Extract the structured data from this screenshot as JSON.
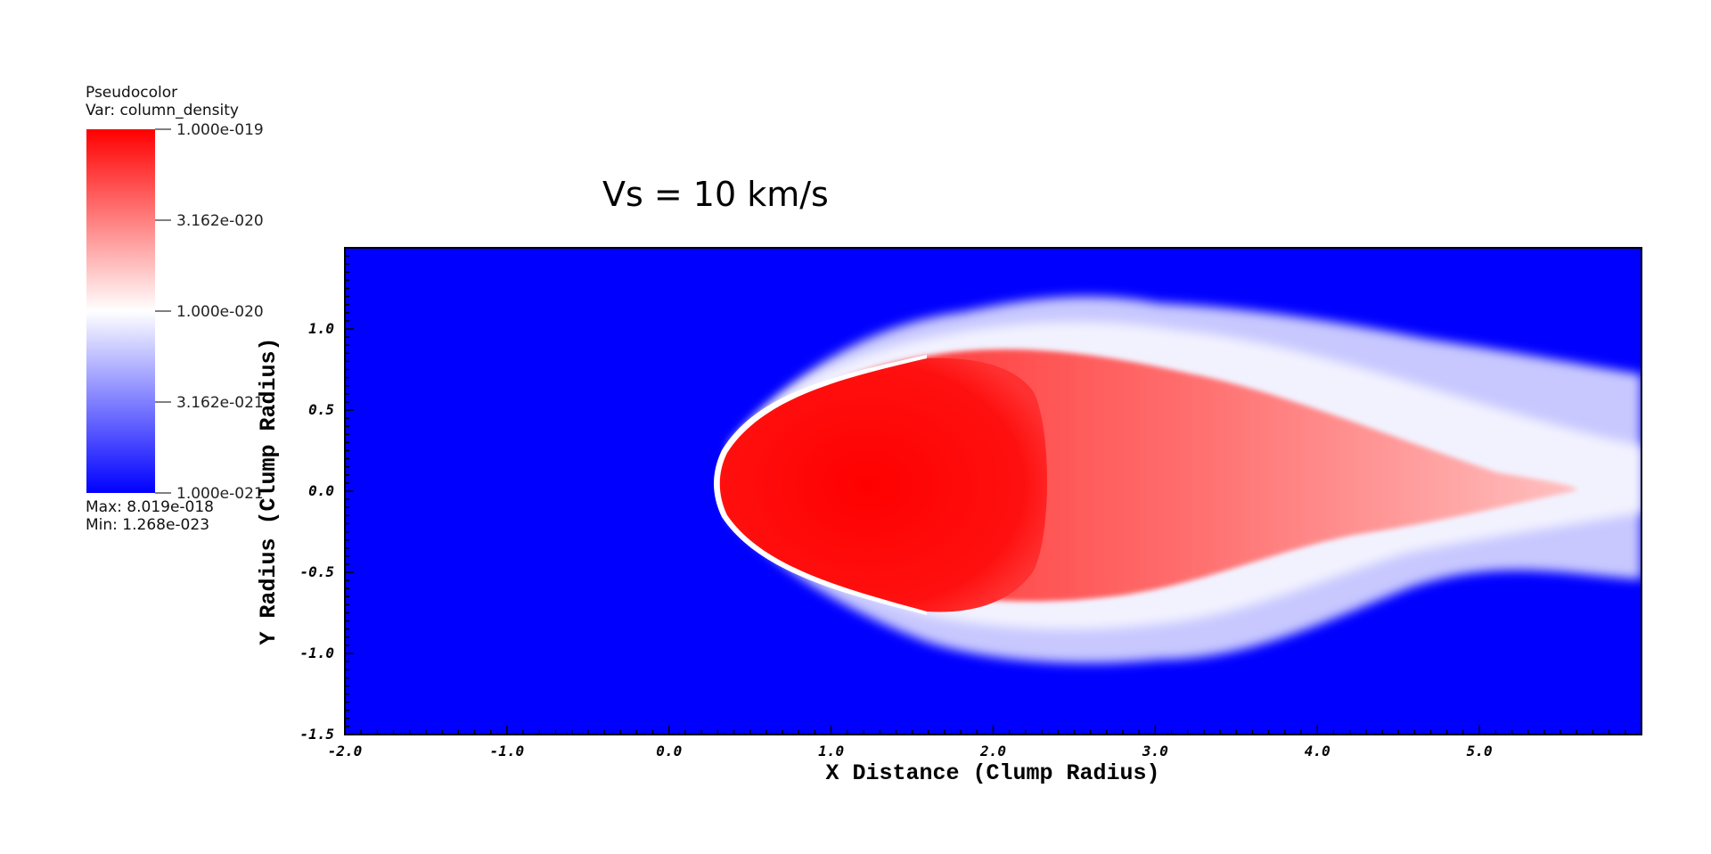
{
  "legend": {
    "type_label": "Pseudocolor",
    "var_label": "Var: column_density",
    "max_label": "Max:  8.019e-018",
    "min_label": "Min:  1.268e-023",
    "colorbar_ticks": [
      "1.000e-019",
      "3.162e-020",
      "1.000e-020",
      "3.162e-021",
      "1.000e-021"
    ],
    "colormap": [
      "#ff0000",
      "#ffffff",
      "#0000ff"
    ],
    "scale": "log"
  },
  "chart_data": {
    "type": "heatmap",
    "title": "Vs = 10 km/s",
    "xlabel": "X Distance (Clump Radius)",
    "ylabel": "Y Radius (Clump Radius)",
    "xlim": [
      -2.0,
      6.0
    ],
    "ylim": [
      -1.5,
      1.5
    ],
    "x_ticks": [
      "-2.0",
      "-1.0",
      "0.0",
      "1.0",
      "2.0",
      "3.0",
      "4.0",
      "5.0"
    ],
    "x_tick_values": [
      -2,
      -1,
      0,
      1,
      2,
      3,
      4,
      5
    ],
    "y_ticks": [
      "1.0",
      "0.5",
      "0.0",
      "-0.5",
      "-1.0",
      "-1.5"
    ],
    "y_tick_values": [
      1.0,
      0.5,
      0.0,
      -0.5,
      -1.0,
      -1.5
    ],
    "background_color": "#0000ff",
    "high_color": "#ff0000",
    "mid_color": "#ffffff"
  }
}
